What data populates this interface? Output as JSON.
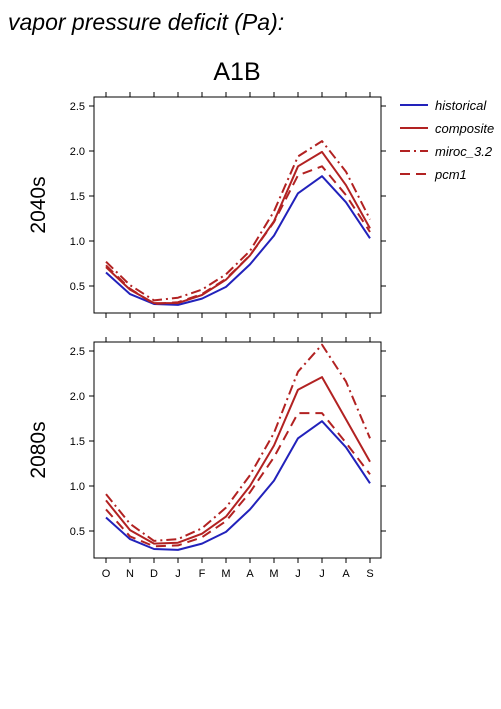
{
  "title": "vapor pressure deficit (Pa):",
  "subtitle": "A1B",
  "colors": {
    "historical": "#2222bb",
    "composite": "#b22222",
    "miroc_3.2": "#b22222",
    "pcm1": "#b22222"
  },
  "chart_data": [
    {
      "type": "line",
      "panel_label": "2040s",
      "categories": [
        "O",
        "N",
        "D",
        "J",
        "F",
        "M",
        "A",
        "M",
        "J",
        "J",
        "A",
        "S"
      ],
      "ylim": [
        0.2,
        2.6
      ],
      "yticks": [
        0.5,
        1.0,
        1.5,
        2.0,
        2.5
      ],
      "ytick_labels": [
        "0.5",
        "1.0",
        "1.5",
        "2.0",
        "2.5"
      ],
      "grid": false,
      "legend_position": "right",
      "series": [
        {
          "name": "historical",
          "style": "solid",
          "color": "#2222bb",
          "values": [
            0.65,
            0.41,
            0.3,
            0.29,
            0.36,
            0.49,
            0.74,
            1.06,
            1.53,
            1.72,
            1.43,
            1.03
          ]
        },
        {
          "name": "composite",
          "style": "solid",
          "color": "#b22222",
          "values": [
            0.71,
            0.46,
            0.31,
            0.31,
            0.4,
            0.57,
            0.84,
            1.22,
            1.83,
            1.99,
            1.62,
            1.14
          ]
        },
        {
          "name": "miroc_3.2",
          "style": "dashdot",
          "color": "#b22222",
          "values": [
            0.77,
            0.51,
            0.34,
            0.37,
            0.46,
            0.63,
            0.89,
            1.33,
            1.94,
            2.11,
            1.77,
            1.24
          ]
        },
        {
          "name": "pcm1",
          "style": "dashed",
          "color": "#b22222",
          "values": [
            0.73,
            0.47,
            0.3,
            0.32,
            0.41,
            0.58,
            0.84,
            1.21,
            1.73,
            1.83,
            1.51,
            1.1
          ]
        }
      ]
    },
    {
      "type": "line",
      "panel_label": "2080s",
      "categories": [
        "O",
        "N",
        "D",
        "J",
        "F",
        "M",
        "A",
        "M",
        "J",
        "J",
        "A",
        "S"
      ],
      "ylim": [
        0.2,
        2.6
      ],
      "yticks": [
        0.5,
        1.0,
        1.5,
        2.0,
        2.5
      ],
      "ytick_labels": [
        "0.5",
        "1.0",
        "1.5",
        "2.0",
        "2.5"
      ],
      "grid": false,
      "legend_position": "right",
      "series": [
        {
          "name": "historical",
          "style": "solid",
          "color": "#2222bb",
          "values": [
            0.65,
            0.41,
            0.3,
            0.29,
            0.36,
            0.49,
            0.74,
            1.06,
            1.53,
            1.72,
            1.43,
            1.03
          ]
        },
        {
          "name": "composite",
          "style": "solid",
          "color": "#b22222",
          "values": [
            0.84,
            0.51,
            0.36,
            0.37,
            0.47,
            0.66,
            1.0,
            1.45,
            2.07,
            2.21,
            1.74,
            1.27
          ]
        },
        {
          "name": "miroc_3.2",
          "style": "dashdot",
          "color": "#b22222",
          "values": [
            0.91,
            0.58,
            0.39,
            0.41,
            0.53,
            0.76,
            1.12,
            1.59,
            2.27,
            2.57,
            2.16,
            1.53
          ]
        },
        {
          "name": "pcm1",
          "style": "dashed",
          "color": "#b22222",
          "values": [
            0.74,
            0.44,
            0.33,
            0.34,
            0.43,
            0.61,
            0.93,
            1.32,
            1.81,
            1.81,
            1.48,
            1.13
          ]
        }
      ]
    }
  ]
}
